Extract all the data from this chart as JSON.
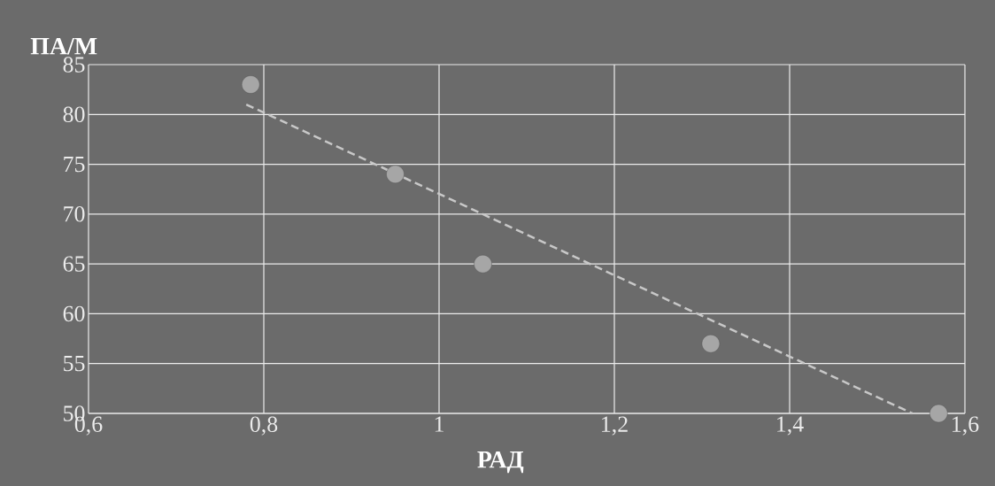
{
  "chart_data": {
    "type": "scatter",
    "xlabel": "РАД",
    "ylabel": "ПА/М",
    "xlim": [
      0.6,
      1.6
    ],
    "ylim": [
      50,
      85
    ],
    "xticks": [
      {
        "value": 0.6,
        "label": "0,6"
      },
      {
        "value": 0.8,
        "label": "0,8"
      },
      {
        "value": 1,
        "label": "1"
      },
      {
        "value": 1.2,
        "label": "1,2"
      },
      {
        "value": 1.4,
        "label": "1,4"
      },
      {
        "value": 1.6,
        "label": "1,6"
      }
    ],
    "yticks": [
      50,
      55,
      60,
      65,
      70,
      75,
      80,
      85
    ],
    "grid": true,
    "marker": "circle",
    "series": [
      {
        "color": "#a6a6a6",
        "x": [
          0.785,
          0.95,
          1.05,
          1.31,
          1.57
        ],
        "values": [
          83,
          74,
          65,
          57,
          50
        ]
      },
      {
        "type": "line",
        "color": "#c8c8c8",
        "line_style": "dashed",
        "marker": "none",
        "x": [
          0.78,
          1.54
        ],
        "values": [
          81,
          50
        ]
      }
    ]
  }
}
